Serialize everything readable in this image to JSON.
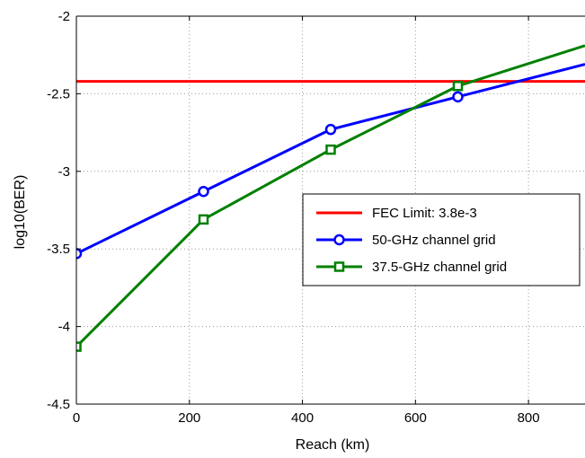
{
  "chart_data": {
    "type": "line",
    "xlabel": "Reach (km)",
    "ylabel": "log10(BER)",
    "xlim": [
      0,
      900
    ],
    "ylim": [
      -4.5,
      -2
    ],
    "xticks": [
      0,
      200,
      400,
      600,
      800
    ],
    "xtick_labels": [
      "0",
      "200",
      "400",
      "600",
      "800"
    ],
    "yticks": [
      -4.5,
      -4,
      -3.5,
      -3,
      -2.5,
      -2
    ],
    "ytick_labels": [
      "-4.5",
      "-4",
      "-3.5",
      "-3",
      "-2.5",
      "-2"
    ],
    "grid": true,
    "legend_position": "center-right",
    "series": [
      {
        "name": "FEC Limit: 3.8e-3",
        "color": "#ff0000",
        "marker": "none",
        "x": [
          0,
          900
        ],
        "y": [
          -2.42,
          -2.42
        ]
      },
      {
        "name": "50-GHz channel grid",
        "color": "#0000ff",
        "marker": "circle",
        "x": [
          0,
          225,
          450,
          675,
          900
        ],
        "y": [
          -3.53,
          -3.13,
          -2.73,
          -2.52,
          -2.31
        ]
      },
      {
        "name": "37.5-GHz channel grid",
        "color": "#008000",
        "marker": "square",
        "x": [
          0,
          225,
          450,
          675,
          900
        ],
        "y": [
          -4.13,
          -3.31,
          -2.86,
          -2.45,
          -2.19
        ]
      }
    ]
  }
}
